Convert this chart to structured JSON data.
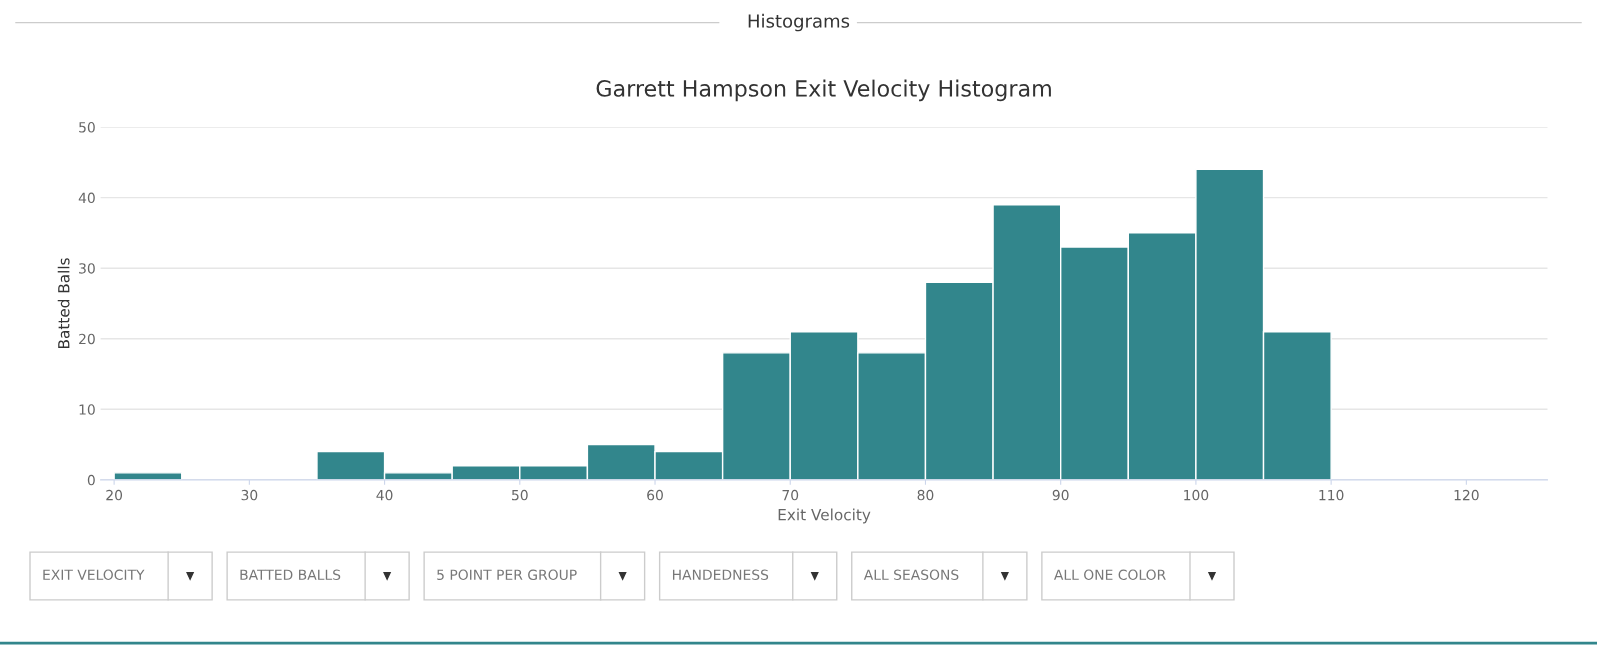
{
  "chart_data": {
    "type": "histogram",
    "title": "Garrett Hampson Exit Velocity Histogram",
    "xlabel": "Exit Velocity",
    "ylabel": "Batted Balls",
    "bins": [
      20,
      25,
      30,
      35,
      40,
      45,
      50,
      55,
      60,
      65,
      70,
      75,
      80,
      85,
      90,
      95,
      100,
      105,
      110
    ],
    "values": [
      1,
      0,
      0,
      4,
      1,
      2,
      2,
      5,
      4,
      18,
      21,
      18,
      28,
      39,
      33,
      35,
      44,
      21
    ],
    "color": "#32868c",
    "xlim": [
      19,
      126
    ],
    "xticks": [
      20,
      30,
      40,
      50,
      60,
      70,
      80,
      90,
      100,
      110,
      120
    ],
    "ylim": [
      0,
      50
    ],
    "yticks": [
      0,
      10,
      20,
      30,
      40,
      50
    ],
    "grid": "y",
    "legend": false,
    "annotations": [
      "Histograms",
      "EXIT VELOCITY",
      "BATTED BALLS",
      "5 POINT PER GROUP",
      "HANDEDNESS",
      "ALL SEASONS",
      "ALL ONE COLOR"
    ]
  }
}
